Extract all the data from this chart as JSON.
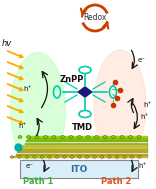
{
  "fig_width": 1.56,
  "fig_height": 1.89,
  "dpi": 100,
  "bg_color": "#ffffff",
  "redox_arrow_color": "#c84000",
  "redox_text": "Redox",
  "redox_text_color": "#333333",
  "hv_text": "hv",
  "hv_color": "#111111",
  "znpp_text": "ZnPP",
  "znpp_color": "#111111",
  "tmd_text": "TMD",
  "tmd_color": "#111111",
  "ito_text": "ITO",
  "ito_color": "#336699",
  "path1_text": "Path 1",
  "path1_color": "#44aa44",
  "path2_text": "Path 2",
  "path2_color": "#dd5522",
  "path1_ellipse_color": "#bbffbb",
  "path2_ellipse_color": "#ffddcc",
  "arrow_color": "#111111",
  "sun_color": "#ffaa00",
  "ito_rect_color": "#d8eef8",
  "ito_border_color": "#888888",
  "znpp_mol_color": "#00ccaa",
  "znpp_core_color": "#000066",
  "znpp_sub_color": "#cc3300",
  "tmd_bead_color": "#88cc00",
  "tmd_bead_color2": "#ccaa00",
  "tmd_layer_colors": [
    "#99dd11",
    "#88cc00",
    "#77bb00",
    "#aabb22",
    "#cccc33",
    "#ddcc44",
    "#ccaa22",
    "#bbaa11",
    "#aaaa22",
    "#ccbb33"
  ]
}
